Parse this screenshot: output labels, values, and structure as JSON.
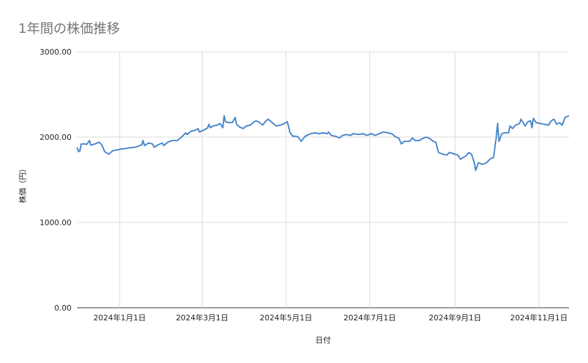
{
  "chart_data": {
    "type": "line",
    "title": "1年間の株価推移",
    "xlabel": "日付",
    "ylabel": "株価（円）",
    "ylim": [
      0,
      3000
    ],
    "yticks": [
      "0.00",
      "1000.00",
      "2000.00",
      "3000.00"
    ],
    "xticks": [
      "2024年1月1日",
      "2024年3月1日",
      "2024年5月1日",
      "2024年7月1日",
      "2024年9月1日",
      "2024年11月1日"
    ],
    "xtick_dates": [
      "2024-01-01",
      "2024-03-01",
      "2024-05-01",
      "2024-07-01",
      "2024-09-01",
      "2024-11-01"
    ],
    "x_range": [
      "2023-12-01",
      "2024-11-23"
    ],
    "grid": true,
    "line_color": "#4a86c8",
    "series": [
      {
        "points": [
          [
            "2023-12-01",
            1880
          ],
          [
            "2023-12-02",
            1830
          ],
          [
            "2023-12-03",
            1835
          ],
          [
            "2023-12-04",
            1920
          ],
          [
            "2023-12-06",
            1920
          ],
          [
            "2023-12-08",
            1915
          ],
          [
            "2023-12-10",
            1960
          ],
          [
            "2023-12-11",
            1905
          ],
          [
            "2023-12-14",
            1920
          ],
          [
            "2023-12-17",
            1940
          ],
          [
            "2023-12-19",
            1910
          ],
          [
            "2023-12-21",
            1830
          ],
          [
            "2023-12-24",
            1800
          ],
          [
            "2023-12-27",
            1840
          ],
          [
            "2023-12-30",
            1850
          ],
          [
            "2024-01-02",
            1860
          ],
          [
            "2024-01-05",
            1865
          ],
          [
            "2024-01-08",
            1875
          ],
          [
            "2024-01-12",
            1880
          ],
          [
            "2024-01-15",
            1895
          ],
          [
            "2024-01-17",
            1910
          ],
          [
            "2024-01-18",
            1960
          ],
          [
            "2024-01-19",
            1900
          ],
          [
            "2024-01-22",
            1930
          ],
          [
            "2024-01-25",
            1920
          ],
          [
            "2024-01-26",
            1880
          ],
          [
            "2024-01-29",
            1910
          ],
          [
            "2024-02-01",
            1930
          ],
          [
            "2024-02-02",
            1900
          ],
          [
            "2024-02-05",
            1940
          ],
          [
            "2024-02-08",
            1960
          ],
          [
            "2024-02-12",
            1960
          ],
          [
            "2024-02-15",
            2000
          ],
          [
            "2024-02-18",
            2050
          ],
          [
            "2024-02-19",
            2030
          ],
          [
            "2024-02-22",
            2070
          ],
          [
            "2024-02-25",
            2080
          ],
          [
            "2024-02-27",
            2100
          ],
          [
            "2024-02-28",
            2060
          ],
          [
            "2024-03-02",
            2080
          ],
          [
            "2024-03-05",
            2110
          ],
          [
            "2024-03-06",
            2150
          ],
          [
            "2024-03-07",
            2110
          ],
          [
            "2024-03-09",
            2130
          ],
          [
            "2024-03-12",
            2140
          ],
          [
            "2024-03-14",
            2160
          ],
          [
            "2024-03-16",
            2110
          ],
          [
            "2024-03-17",
            2250
          ],
          [
            "2024-03-18",
            2180
          ],
          [
            "2024-03-20",
            2170
          ],
          [
            "2024-03-23",
            2170
          ],
          [
            "2024-03-25",
            2230
          ],
          [
            "2024-03-26",
            2150
          ],
          [
            "2024-03-28",
            2120
          ],
          [
            "2024-03-31",
            2100
          ],
          [
            "2024-04-02",
            2130
          ],
          [
            "2024-04-05",
            2140
          ],
          [
            "2024-04-07",
            2170
          ],
          [
            "2024-04-09",
            2190
          ],
          [
            "2024-04-11",
            2180
          ],
          [
            "2024-04-14",
            2140
          ],
          [
            "2024-04-16",
            2180
          ],
          [
            "2024-04-18",
            2210
          ],
          [
            "2024-04-21",
            2170
          ],
          [
            "2024-04-24",
            2130
          ],
          [
            "2024-04-27",
            2140
          ],
          [
            "2024-04-30",
            2160
          ],
          [
            "2024-05-02",
            2180
          ],
          [
            "2024-05-04",
            2050
          ],
          [
            "2024-05-06",
            2010
          ],
          [
            "2024-05-08",
            2010
          ],
          [
            "2024-05-10",
            2000
          ],
          [
            "2024-05-12",
            1950
          ],
          [
            "2024-05-15",
            2010
          ],
          [
            "2024-05-19",
            2040
          ],
          [
            "2024-05-22",
            2050
          ],
          [
            "2024-05-25",
            2040
          ],
          [
            "2024-05-28",
            2050
          ],
          [
            "2024-05-31",
            2040
          ],
          [
            "2024-06-01",
            2060
          ],
          [
            "2024-06-03",
            2020
          ],
          [
            "2024-06-06",
            2010
          ],
          [
            "2024-06-09",
            1990
          ],
          [
            "2024-06-11",
            2020
          ],
          [
            "2024-06-14",
            2030
          ],
          [
            "2024-06-17",
            2020
          ],
          [
            "2024-06-19",
            2040
          ],
          [
            "2024-06-23",
            2030
          ],
          [
            "2024-06-26",
            2040
          ],
          [
            "2024-06-29",
            2020
          ],
          [
            "2024-07-02",
            2040
          ],
          [
            "2024-07-05",
            2020
          ],
          [
            "2024-07-08",
            2040
          ],
          [
            "2024-07-11",
            2060
          ],
          [
            "2024-07-14",
            2050
          ],
          [
            "2024-07-17",
            2040
          ],
          [
            "2024-07-20",
            2000
          ],
          [
            "2024-07-22",
            1990
          ],
          [
            "2024-07-24",
            1920
          ],
          [
            "2024-07-26",
            1950
          ],
          [
            "2024-07-30",
            1950
          ],
          [
            "2024-08-01",
            1990
          ],
          [
            "2024-08-03",
            1960
          ],
          [
            "2024-08-06",
            1960
          ],
          [
            "2024-08-08",
            1980
          ],
          [
            "2024-08-11",
            2000
          ],
          [
            "2024-08-14",
            1980
          ],
          [
            "2024-08-16",
            1950
          ],
          [
            "2024-08-18",
            1940
          ],
          [
            "2024-08-20",
            1820
          ],
          [
            "2024-08-23",
            1800
          ],
          [
            "2024-08-26",
            1790
          ],
          [
            "2024-08-28",
            1820
          ],
          [
            "2024-09-01",
            1800
          ],
          [
            "2024-09-03",
            1790
          ],
          [
            "2024-09-05",
            1740
          ],
          [
            "2024-09-09",
            1780
          ],
          [
            "2024-09-11",
            1820
          ],
          [
            "2024-09-13",
            1800
          ],
          [
            "2024-09-15",
            1700
          ],
          [
            "2024-09-16",
            1610
          ],
          [
            "2024-09-18",
            1700
          ],
          [
            "2024-09-21",
            1680
          ],
          [
            "2024-09-24",
            1700
          ],
          [
            "2024-09-27",
            1750
          ],
          [
            "2024-09-29",
            1760
          ],
          [
            "2024-10-01",
            2000
          ],
          [
            "2024-10-02",
            2160
          ],
          [
            "2024-10-03",
            1950
          ],
          [
            "2024-10-05",
            2040
          ],
          [
            "2024-10-07",
            2050
          ],
          [
            "2024-10-10",
            2050
          ],
          [
            "2024-10-11",
            2130
          ],
          [
            "2024-10-13",
            2100
          ],
          [
            "2024-10-15",
            2140
          ],
          [
            "2024-10-18",
            2160
          ],
          [
            "2024-10-19",
            2210
          ],
          [
            "2024-10-22",
            2130
          ],
          [
            "2024-10-24",
            2180
          ],
          [
            "2024-10-26",
            2190
          ],
          [
            "2024-10-27",
            2110
          ],
          [
            "2024-10-28",
            2220
          ],
          [
            "2024-10-30",
            2170
          ],
          [
            "2024-11-02",
            2160
          ],
          [
            "2024-11-05",
            2150
          ],
          [
            "2024-11-08",
            2140
          ],
          [
            "2024-11-10",
            2190
          ],
          [
            "2024-11-12",
            2210
          ],
          [
            "2024-11-14",
            2150
          ],
          [
            "2024-11-16",
            2170
          ],
          [
            "2024-11-18",
            2140
          ],
          [
            "2024-11-20",
            2230
          ],
          [
            "2024-11-23",
            2250
          ]
        ]
      }
    ]
  }
}
